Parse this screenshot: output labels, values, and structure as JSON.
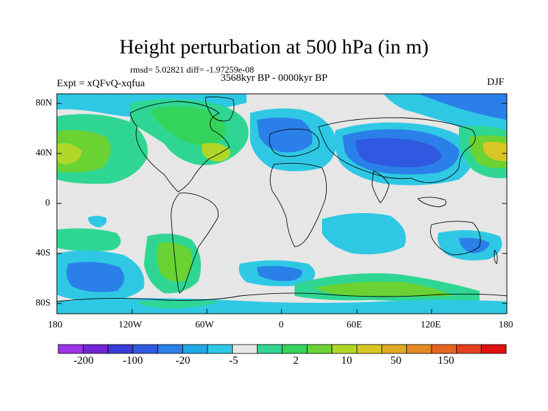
{
  "title": "Height perturbation at 500 hPa (in m)",
  "stats": "rmsd= 5.02821 diff= -1.97259e-08",
  "period": "3568kyr BP - 0000kyr BP",
  "experiment": "Expt = xQFvQ-xqfua",
  "season": "DJF",
  "lat_ticks": [
    "80N",
    "40N",
    "0",
    "40S",
    "80S"
  ],
  "lon_ticks": [
    "180",
    "120W",
    "60W",
    "0",
    "60E",
    "120E",
    "180"
  ],
  "colorbar": {
    "colors": [
      "#9b35e6",
      "#7324d6",
      "#3a3ad6",
      "#2f59e0",
      "#2a80e8",
      "#1fa6e6",
      "#2fc8e4",
      "#e6e6e6",
      "#2fd693",
      "#34d45c",
      "#6ad233",
      "#b0d628",
      "#d7c624",
      "#e0a824",
      "#e58a22",
      "#e56520",
      "#e24220",
      "#e01010"
    ],
    "labels": [
      "-200",
      "-100",
      "-20",
      "-5",
      "2",
      "10",
      "50",
      "150"
    ]
  }
}
